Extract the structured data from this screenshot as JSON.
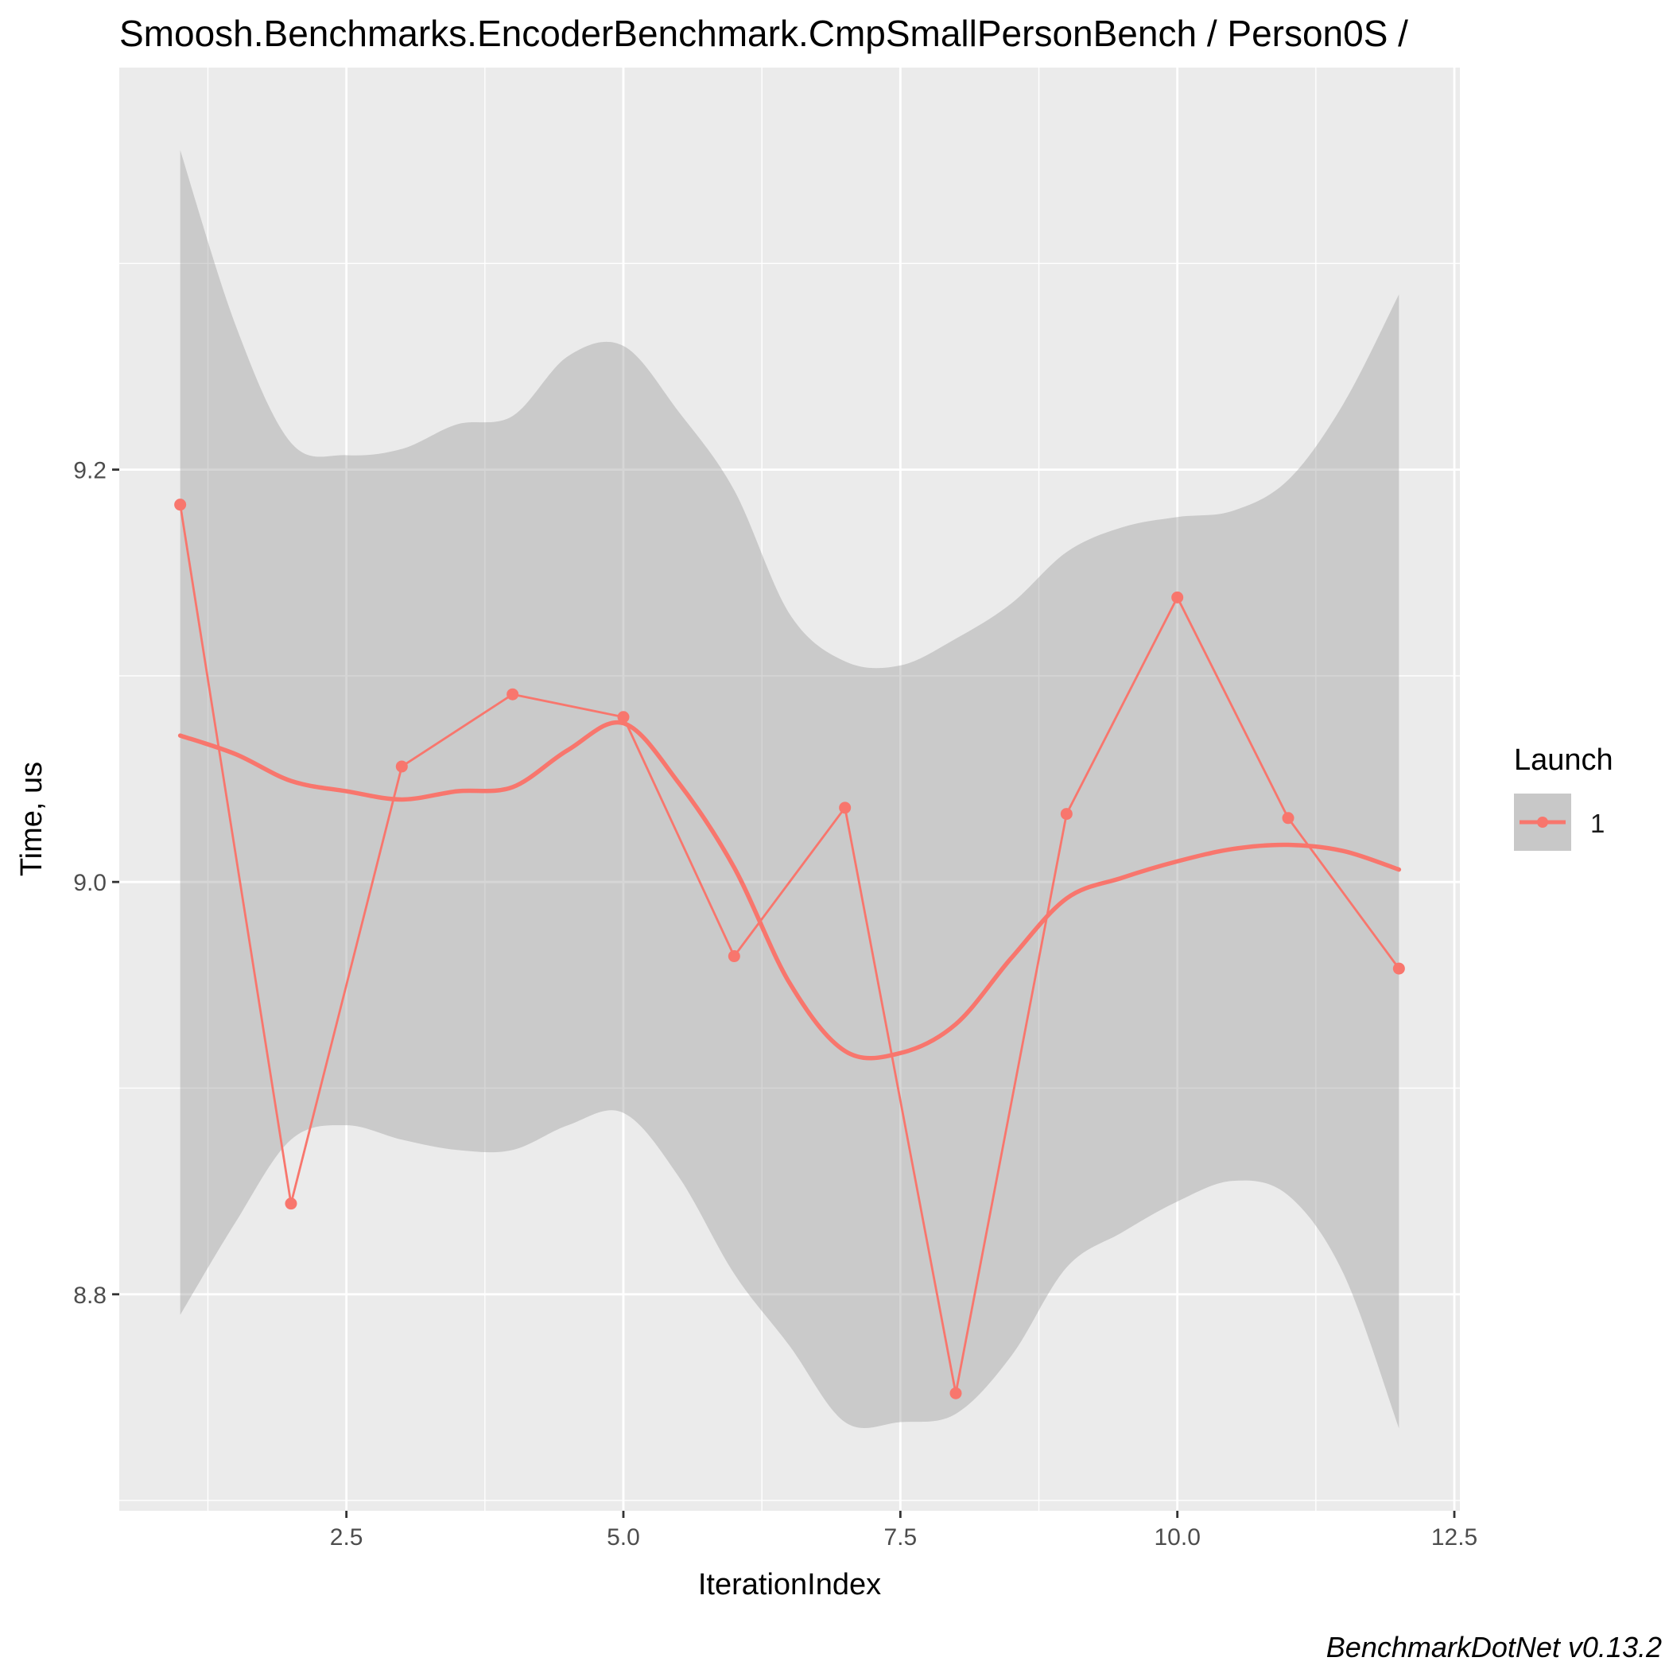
{
  "chart_data": {
    "type": "line",
    "title": "Smoosh.Benchmarks.EncoderBenchmark.CmpSmallPersonBench / Person0S /",
    "xlabel": "IterationIndex",
    "ylabel": "Time, us",
    "caption": "BenchmarkDotNet v0.13.2",
    "xlim": [
      0.45,
      12.55
    ],
    "ylim": [
      8.695,
      9.395
    ],
    "x_ticks": [
      {
        "value": 2.5,
        "label": "2.5"
      },
      {
        "value": 5.0,
        "label": "5.0"
      },
      {
        "value": 7.5,
        "label": "7.5"
      },
      {
        "value": 10.0,
        "label": "10.0"
      },
      {
        "value": 12.5,
        "label": "12.5"
      }
    ],
    "y_ticks": [
      {
        "value": 8.8,
        "label": "8.8"
      },
      {
        "value": 9.0,
        "label": "9.0"
      },
      {
        "value": 9.2,
        "label": "9.2"
      }
    ],
    "grid": true,
    "legend": {
      "title": "Launch",
      "placement": "right",
      "entries": [
        "1"
      ]
    },
    "series": [
      {
        "name": "1",
        "color": "#F8766D",
        "x": [
          1,
          2,
          3,
          4,
          5,
          6,
          7,
          8,
          9,
          10,
          11,
          12
        ],
        "values": [
          9.183,
          8.844,
          9.056,
          9.091,
          9.08,
          8.964,
          9.036,
          8.752,
          9.033,
          9.138,
          9.031,
          8.958
        ]
      }
    ],
    "smooth": {
      "color": "#F8766D",
      "ribbon_color": "#999999",
      "x": [
        1,
        1.5,
        2,
        2.5,
        3,
        3.5,
        4,
        4.5,
        5,
        5.5,
        6,
        6.5,
        7,
        7.5,
        8,
        8.5,
        9,
        9.5,
        10,
        10.5,
        11,
        11.5,
        12
      ],
      "fit": [
        9.071,
        9.062,
        9.049,
        9.044,
        9.04,
        9.044,
        9.046,
        9.064,
        9.077,
        9.048,
        9.007,
        8.951,
        8.918,
        8.917,
        8.931,
        8.963,
        8.992,
        9.002,
        9.01,
        9.016,
        9.018,
        9.015,
        9.006
      ],
      "lower": [
        8.79,
        8.835,
        8.875,
        8.882,
        8.875,
        8.87,
        8.87,
        8.882,
        8.888,
        8.857,
        8.81,
        8.775,
        8.738,
        8.738,
        8.742,
        8.77,
        8.813,
        8.83,
        8.845,
        8.855,
        8.848,
        8.81,
        8.735
      ],
      "upper": [
        9.355,
        9.27,
        9.213,
        9.207,
        9.21,
        9.222,
        9.226,
        9.255,
        9.26,
        9.228,
        9.19,
        9.13,
        9.107,
        9.105,
        9.118,
        9.135,
        9.16,
        9.172,
        9.177,
        9.18,
        9.195,
        9.232,
        9.285
      ]
    }
  }
}
